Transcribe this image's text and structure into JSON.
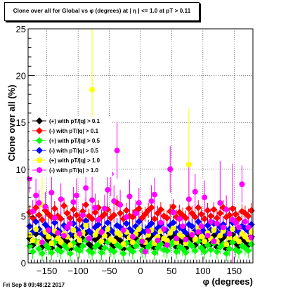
{
  "title": "Clone  over all for Global vs φ (degrees) at | η | <= 1.0 at pT > 0.11",
  "footer": "Fri Sep  8 09:48:22 2017",
  "colors": {
    "black": "#000000",
    "red": "#ff0000",
    "green": "#00ff00",
    "blue": "#0000ff",
    "yellow": "#ffff00",
    "magenta": "#ff00ff"
  },
  "chart_data": {
    "type": "scatter",
    "title": "Clone  over all for Global vs φ (degrees) at | η | <= 1.0 at pT > 0.11",
    "xlabel": "φ (degrees)",
    "ylabel": "Clone  over all (%)",
    "xlim": [
      -180,
      180
    ],
    "ylim": [
      0,
      25
    ],
    "xticks": [
      -150,
      -100,
      -50,
      0,
      50,
      100,
      150
    ],
    "yticks": [
      0,
      5,
      10,
      15,
      20,
      25
    ],
    "grid": true,
    "legend_position": "left-middle",
    "n_points_per_series": 72,
    "series": [
      {
        "name": "(+) with pT/|q| > 0.1",
        "color": "#000000",
        "marker": "diamond",
        "x": [
          -177.5,
          -172.5,
          -167.5,
          -162.5,
          -157.5,
          -152.5,
          -147.5,
          -142.5,
          -137.5,
          -132.5,
          -127.5,
          -122.5,
          -117.5,
          -112.5,
          -107.5,
          -102.5,
          -97.5,
          -92.5,
          -87.5,
          -82.5,
          -77.5,
          -72.5,
          -67.5,
          -62.5,
          -57.5,
          -52.5,
          -47.5,
          -42.5,
          -37.5,
          -32.5,
          -27.5,
          -22.5,
          -17.5,
          -12.5,
          -7.5,
          -2.5,
          2.5,
          7.5,
          12.5,
          17.5,
          22.5,
          27.5,
          32.5,
          37.5,
          42.5,
          47.5,
          52.5,
          57.5,
          62.5,
          67.5,
          72.5,
          77.5,
          82.5,
          87.5,
          92.5,
          97.5,
          102.5,
          107.5,
          112.5,
          117.5,
          122.5,
          127.5,
          132.5,
          137.5,
          142.5,
          147.5,
          152.5,
          157.5,
          162.5,
          167.5,
          172.5,
          177.5
        ],
        "y": [
          2.6,
          1.9,
          3.1,
          2.2,
          1.7,
          2.8,
          2.4,
          1.6,
          3.0,
          2.1,
          1.8,
          2.7,
          2.3,
          1.5,
          2.9,
          2.2,
          1.9,
          2.6,
          3.2,
          2.0,
          1.7,
          2.5,
          2.8,
          1.6,
          2.3,
          3.0,
          2.1,
          1.8,
          2.7,
          2.4,
          1.5,
          2.9,
          2.2,
          1.7,
          2.6,
          3.1,
          2.0,
          1.8,
          2.5,
          2.9,
          1.6,
          2.3,
          2.8,
          2.1,
          1.9,
          2.7,
          3.0,
          1.7,
          2.4,
          2.2,
          1.6,
          2.8,
          2.5,
          1.9,
          3.1,
          2.3,
          1.8,
          2.6,
          2.0,
          2.9,
          1.7,
          2.4,
          2.7,
          1.5,
          2.2,
          3.0,
          2.1,
          1.8,
          2.6,
          2.3,
          1.9,
          2.8
        ]
      },
      {
        "name": "(-) with pT/|q| > 0.1",
        "color": "#ff0000",
        "marker": "diamond",
        "x": [
          -177.5,
          -172.5,
          -167.5,
          -162.5,
          -157.5,
          -152.5,
          -147.5,
          -142.5,
          -137.5,
          -132.5,
          -127.5,
          -122.5,
          -117.5,
          -112.5,
          -107.5,
          -102.5,
          -97.5,
          -92.5,
          -87.5,
          -82.5,
          -77.5,
          -72.5,
          -67.5,
          -62.5,
          -57.5,
          -52.5,
          -47.5,
          -42.5,
          -37.5,
          -32.5,
          -27.5,
          -22.5,
          -17.5,
          -12.5,
          -7.5,
          -2.5,
          2.5,
          7.5,
          12.5,
          17.5,
          22.5,
          27.5,
          32.5,
          37.5,
          42.5,
          47.5,
          52.5,
          57.5,
          62.5,
          67.5,
          72.5,
          77.5,
          82.5,
          87.5,
          92.5,
          97.5,
          102.5,
          107.5,
          112.5,
          117.5,
          122.5,
          127.5,
          132.5,
          137.5,
          142.5,
          147.5,
          152.5,
          157.5,
          162.5,
          167.5,
          172.5,
          177.5
        ],
        "y": [
          5.4,
          4.8,
          5.9,
          5.1,
          4.6,
          5.6,
          5.2,
          4.9,
          5.8,
          5.0,
          4.7,
          6.1,
          5.3,
          4.8,
          5.7,
          5.1,
          4.6,
          5.5,
          6.2,
          5.0,
          4.7,
          5.4,
          5.9,
          4.9,
          5.2,
          5.7,
          4.8,
          5.1,
          6.4,
          5.3,
          4.7,
          5.6,
          5.0,
          4.9,
          5.5,
          5.8,
          4.8,
          5.2,
          5.6,
          5.9,
          4.7,
          5.3,
          5.7,
          5.0,
          4.8,
          5.5,
          6.0,
          4.9,
          5.4,
          5.1,
          4.8,
          5.8,
          5.3,
          4.9,
          5.9,
          5.2,
          4.7,
          5.6,
          5.0,
          5.7,
          4.8,
          5.3,
          5.9,
          4.9,
          5.1,
          5.8,
          5.2,
          4.7,
          5.5,
          5.3,
          5.0,
          5.6
        ]
      },
      {
        "name": "(+) with pT/|q| > 0.5",
        "color": "#00ff00",
        "marker": "diamond",
        "x": [
          -177.5,
          -172.5,
          -167.5,
          -162.5,
          -157.5,
          -152.5,
          -147.5,
          -142.5,
          -137.5,
          -132.5,
          -127.5,
          -122.5,
          -117.5,
          -112.5,
          -107.5,
          -102.5,
          -97.5,
          -92.5,
          -87.5,
          -82.5,
          -77.5,
          -72.5,
          -67.5,
          -62.5,
          -57.5,
          -52.5,
          -47.5,
          -42.5,
          -37.5,
          -32.5,
          -27.5,
          -22.5,
          -17.5,
          -12.5,
          -7.5,
          -2.5,
          2.5,
          7.5,
          12.5,
          17.5,
          22.5,
          27.5,
          32.5,
          37.5,
          42.5,
          47.5,
          52.5,
          57.5,
          62.5,
          67.5,
          72.5,
          77.5,
          82.5,
          87.5,
          92.5,
          97.5,
          102.5,
          107.5,
          112.5,
          117.5,
          122.5,
          127.5,
          132.5,
          137.5,
          142.5,
          147.5,
          152.5,
          157.5,
          162.5,
          167.5,
          172.5,
          177.5
        ],
        "y": [
          1.8,
          1.2,
          2.3,
          1.5,
          1.0,
          2.0,
          1.6,
          1.1,
          2.2,
          1.4,
          1.2,
          1.9,
          1.6,
          1.0,
          2.1,
          1.5,
          1.3,
          1.8,
          2.4,
          1.3,
          1.1,
          1.7,
          2.0,
          1.1,
          1.6,
          2.2,
          1.4,
          1.2,
          1.9,
          1.7,
          1.0,
          2.1,
          1.5,
          1.2,
          1.8,
          2.3,
          1.3,
          1.2,
          1.7,
          2.1,
          1.1,
          1.6,
          2.0,
          1.4,
          1.3,
          1.9,
          2.2,
          1.2,
          1.7,
          1.5,
          1.1,
          2.0,
          1.8,
          1.3,
          2.3,
          1.6,
          1.2,
          1.9,
          1.4,
          2.1,
          1.2,
          1.7,
          2.0,
          1.0,
          1.5,
          2.2,
          1.4,
          1.2,
          1.8,
          1.6,
          1.3,
          2.0
        ]
      },
      {
        "name": "(-) with pT/|q| > 0.5",
        "color": "#0000ff",
        "marker": "diamond",
        "x": [
          -177.5,
          -172.5,
          -167.5,
          -162.5,
          -157.5,
          -152.5,
          -147.5,
          -142.5,
          -137.5,
          -132.5,
          -127.5,
          -122.5,
          -117.5,
          -112.5,
          -107.5,
          -102.5,
          -97.5,
          -92.5,
          -87.5,
          -82.5,
          -77.5,
          -72.5,
          -67.5,
          -62.5,
          -57.5,
          -52.5,
          -47.5,
          -42.5,
          -37.5,
          -32.5,
          -27.5,
          -22.5,
          -17.5,
          -12.5,
          -7.5,
          -2.5,
          2.5,
          7.5,
          12.5,
          17.5,
          22.5,
          27.5,
          32.5,
          37.5,
          42.5,
          47.5,
          52.5,
          57.5,
          62.5,
          67.5,
          72.5,
          77.5,
          82.5,
          87.5,
          92.5,
          97.5,
          102.5,
          107.5,
          112.5,
          117.5,
          122.5,
          127.5,
          132.5,
          137.5,
          142.5,
          147.5,
          152.5,
          157.5,
          162.5,
          167.5,
          172.5,
          177.5
        ],
        "y": [
          3.9,
          3.3,
          4.4,
          3.6,
          3.1,
          4.1,
          3.7,
          3.2,
          4.3,
          3.5,
          3.2,
          4.0,
          3.7,
          3.0,
          4.2,
          3.6,
          3.3,
          3.9,
          4.5,
          3.4,
          3.1,
          3.8,
          4.1,
          3.2,
          3.7,
          4.3,
          3.5,
          3.2,
          4.0,
          3.8,
          3.1,
          4.2,
          3.6,
          3.3,
          3.9,
          4.4,
          3.4,
          3.3,
          3.8,
          4.2,
          3.2,
          3.7,
          4.1,
          3.5,
          3.4,
          4.0,
          4.3,
          3.2,
          3.8,
          3.6,
          3.2,
          4.1,
          3.9,
          3.4,
          4.4,
          3.7,
          3.3,
          4.0,
          3.5,
          4.2,
          3.3,
          3.8,
          4.1,
          3.1,
          3.6,
          4.3,
          3.5,
          3.3,
          3.9,
          3.7,
          3.4,
          4.1
        ]
      },
      {
        "name": "(+) with pT/|q| > 1.0",
        "color": "#ffff00",
        "marker": "circle",
        "x": [
          -177.5,
          -172.5,
          -167.5,
          -162.5,
          -157.5,
          -152.5,
          -147.5,
          -142.5,
          -137.5,
          -132.5,
          -127.5,
          -122.5,
          -117.5,
          -112.5,
          -107.5,
          -102.5,
          -97.5,
          -92.5,
          -87.5,
          -82.5,
          -77.5,
          -72.5,
          -67.5,
          -62.5,
          -57.5,
          -52.5,
          -47.5,
          -42.5,
          -37.5,
          -32.5,
          -27.5,
          -22.5,
          -17.5,
          -12.5,
          -7.5,
          -2.5,
          2.5,
          7.5,
          12.5,
          17.5,
          22.5,
          27.5,
          32.5,
          37.5,
          42.5,
          47.5,
          52.5,
          57.5,
          62.5,
          67.5,
          72.5,
          77.5,
          82.5,
          87.5,
          92.5,
          97.5,
          102.5,
          107.5,
          112.5,
          117.5,
          122.5,
          127.5,
          132.5,
          137.5,
          142.5,
          147.5,
          152.5,
          157.5,
          162.5,
          167.5,
          172.5,
          177.5
        ],
        "y": [
          3.0,
          2.4,
          3.6,
          2.2,
          6.2,
          3.3,
          2.8,
          2.1,
          3.4,
          2.6,
          2.2,
          3.1,
          2.8,
          1.9,
          3.5,
          2.9,
          2.4,
          3.2,
          4.0,
          2.6,
          18.5,
          3.0,
          3.4,
          2.3,
          2.9,
          3.6,
          2.5,
          2.3,
          3.2,
          3.0,
          2.0,
          3.3,
          2.7,
          2.2,
          3.1,
          3.6,
          2.4,
          2.2,
          3.0,
          3.5,
          2.1,
          2.8,
          3.4,
          2.6,
          2.4,
          3.2,
          3.7,
          2.2,
          3.0,
          2.8,
          2.1,
          10.5,
          3.1,
          2.5,
          3.7,
          2.8,
          2.3,
          3.2,
          2.6,
          3.5,
          2.3,
          2.9,
          3.4,
          2.0,
          2.7,
          3.6,
          2.6,
          2.3,
          3.1,
          2.8,
          2.5,
          3.3
        ],
        "err": [
          0.8,
          0.8,
          1.0,
          0.8,
          5.0,
          0.9,
          0.8,
          0.8,
          0.9,
          0.8,
          0.8,
          0.9,
          0.8,
          0.8,
          1.0,
          0.9,
          0.8,
          0.9,
          1.2,
          0.8,
          8.0,
          0.9,
          1.0,
          0.8,
          0.9,
          1.0,
          0.8,
          0.8,
          0.9,
          0.9,
          0.8,
          0.9,
          0.8,
          0.8,
          0.9,
          1.0,
          0.8,
          0.8,
          0.9,
          1.0,
          0.8,
          0.8,
          0.9,
          0.8,
          0.8,
          0.9,
          1.0,
          0.8,
          0.9,
          0.8,
          0.8,
          6.0,
          0.9,
          0.8,
          1.0,
          0.8,
          0.8,
          0.9,
          0.8,
          1.0,
          0.8,
          0.8,
          0.9,
          0.8,
          0.8,
          1.0,
          0.8,
          0.8,
          0.9,
          0.8,
          0.8,
          0.9
        ]
      },
      {
        "name": "(-) with pT/|q| > 1.0",
        "color": "#ff00ff",
        "marker": "circle",
        "x": [
          -177.5,
          -172.5,
          -167.5,
          -162.5,
          -157.5,
          -152.5,
          -147.5,
          -142.5,
          -137.5,
          -132.5,
          -127.5,
          -122.5,
          -117.5,
          -112.5,
          -107.5,
          -102.5,
          -97.5,
          -92.5,
          -87.5,
          -82.5,
          -77.5,
          -72.5,
          -67.5,
          -62.5,
          -57.5,
          -52.5,
          -47.5,
          -42.5,
          -37.5,
          -32.5,
          -27.5,
          -22.5,
          -17.5,
          -12.5,
          -7.5,
          -2.5,
          2.5,
          7.5,
          12.5,
          17.5,
          22.5,
          27.5,
          32.5,
          37.5,
          42.5,
          47.5,
          52.5,
          57.5,
          62.5,
          67.5,
          72.5,
          77.5,
          82.5,
          87.5,
          92.5,
          97.5,
          102.5,
          107.5,
          112.5,
          117.5,
          122.5,
          127.5,
          132.5,
          137.5,
          142.5,
          147.5,
          152.5,
          157.5,
          162.5,
          167.5,
          172.5,
          177.5
        ],
        "y": [
          9.0,
          5.5,
          7.2,
          6.4,
          2.2,
          6.0,
          3.5,
          7.5,
          4.8,
          3.2,
          6.8,
          2.9,
          3.8,
          4.2,
          6.5,
          7.2,
          3.1,
          5.1,
          8.0,
          2.6,
          6.7,
          5.9,
          4.6,
          3.3,
          5.8,
          7.8,
          9.5,
          6.6,
          12.0,
          6.2,
          3.5,
          4.9,
          7.1,
          2.8,
          5.3,
          6.4,
          2.3,
          1.2,
          3.4,
          6.6,
          7.3,
          2.4,
          4.3,
          3.6,
          1.9,
          10.0,
          5.4,
          2.6,
          4.7,
          3.9,
          2.5,
          6.8,
          3.0,
          7.6,
          3.3,
          3.9,
          7.0,
          2.9,
          4.4,
          2.3,
          4.2,
          6.4,
          3.8,
          5.7,
          3.1,
          4.6,
          4.3,
          3.8,
          8.4,
          4.4,
          3.8,
          2.7
        ],
        "err": [
          1.5,
          1.2,
          1.8,
          1.4,
          0.8,
          1.6,
          1.0,
          1.9,
          1.2,
          1.0,
          1.7,
          0.9,
          1.1,
          1.2,
          1.6,
          1.8,
          1.0,
          1.3,
          2.5,
          0.9,
          3.5,
          1.5,
          1.2,
          1.0,
          1.5,
          2.0,
          2.4,
          1.7,
          3.0,
          1.6,
          1.0,
          1.3,
          1.8,
          0.9,
          1.4,
          1.6,
          0.8,
          0.6,
          1.0,
          1.7,
          1.8,
          0.8,
          1.2,
          1.1,
          0.8,
          2.5,
          1.4,
          0.9,
          1.3,
          1.1,
          0.8,
          4.0,
          1.0,
          1.9,
          1.0,
          1.1,
          1.8,
          0.9,
          1.2,
          0.8,
          1.2,
          4.5,
          1.1,
          1.5,
          1.0,
          6.0,
          1.2,
          1.1,
          2.0,
          1.2,
          1.1,
          0.9
        ]
      }
    ]
  }
}
